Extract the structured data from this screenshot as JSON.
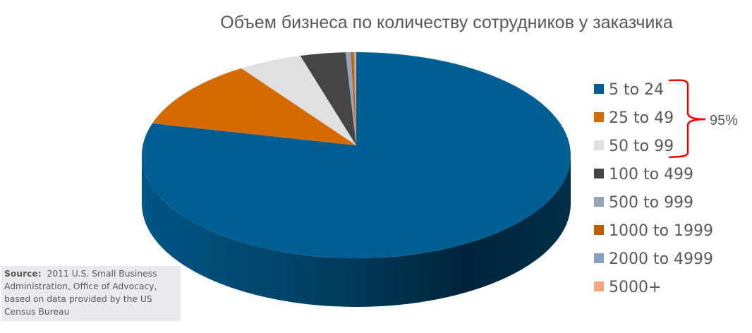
{
  "chart_data": {
    "type": "pie",
    "style": "3d",
    "title": "Объем бизнеса по количеству сотрудников у заказчика",
    "legend_position": "right",
    "slices": [
      {
        "label": "5 to 24",
        "value": 80.0,
        "color": "#005f92"
      },
      {
        "label": "25 to 49",
        "value": 11.0,
        "color": "#d46a00"
      },
      {
        "label": "50 to 99",
        "value": 4.8,
        "color": "#e0e0e0"
      },
      {
        "label": "100 to 499",
        "value": 3.4,
        "color": "#454545"
      },
      {
        "label": "500 to 999",
        "value": 0.4,
        "color": "#97a3b6"
      },
      {
        "label": "1000 to 1999",
        "value": 0.2,
        "color": "#bf5e00"
      },
      {
        "label": "2000 to 4999",
        "value": 0.1,
        "color": "#88a2c0"
      },
      {
        "label": "5000+",
        "value": 0.1,
        "color": "#f4a583"
      }
    ],
    "annotation": {
      "text": "95%",
      "groups": [
        "5 to 24",
        "25 to 49",
        "50 to 99"
      ],
      "color": "#ff0000"
    }
  },
  "source": {
    "label": "Source:",
    "text": "2011 U.S. Small Business Administration, Office of Advocacy, based on data provided by the US Census Bureau"
  }
}
